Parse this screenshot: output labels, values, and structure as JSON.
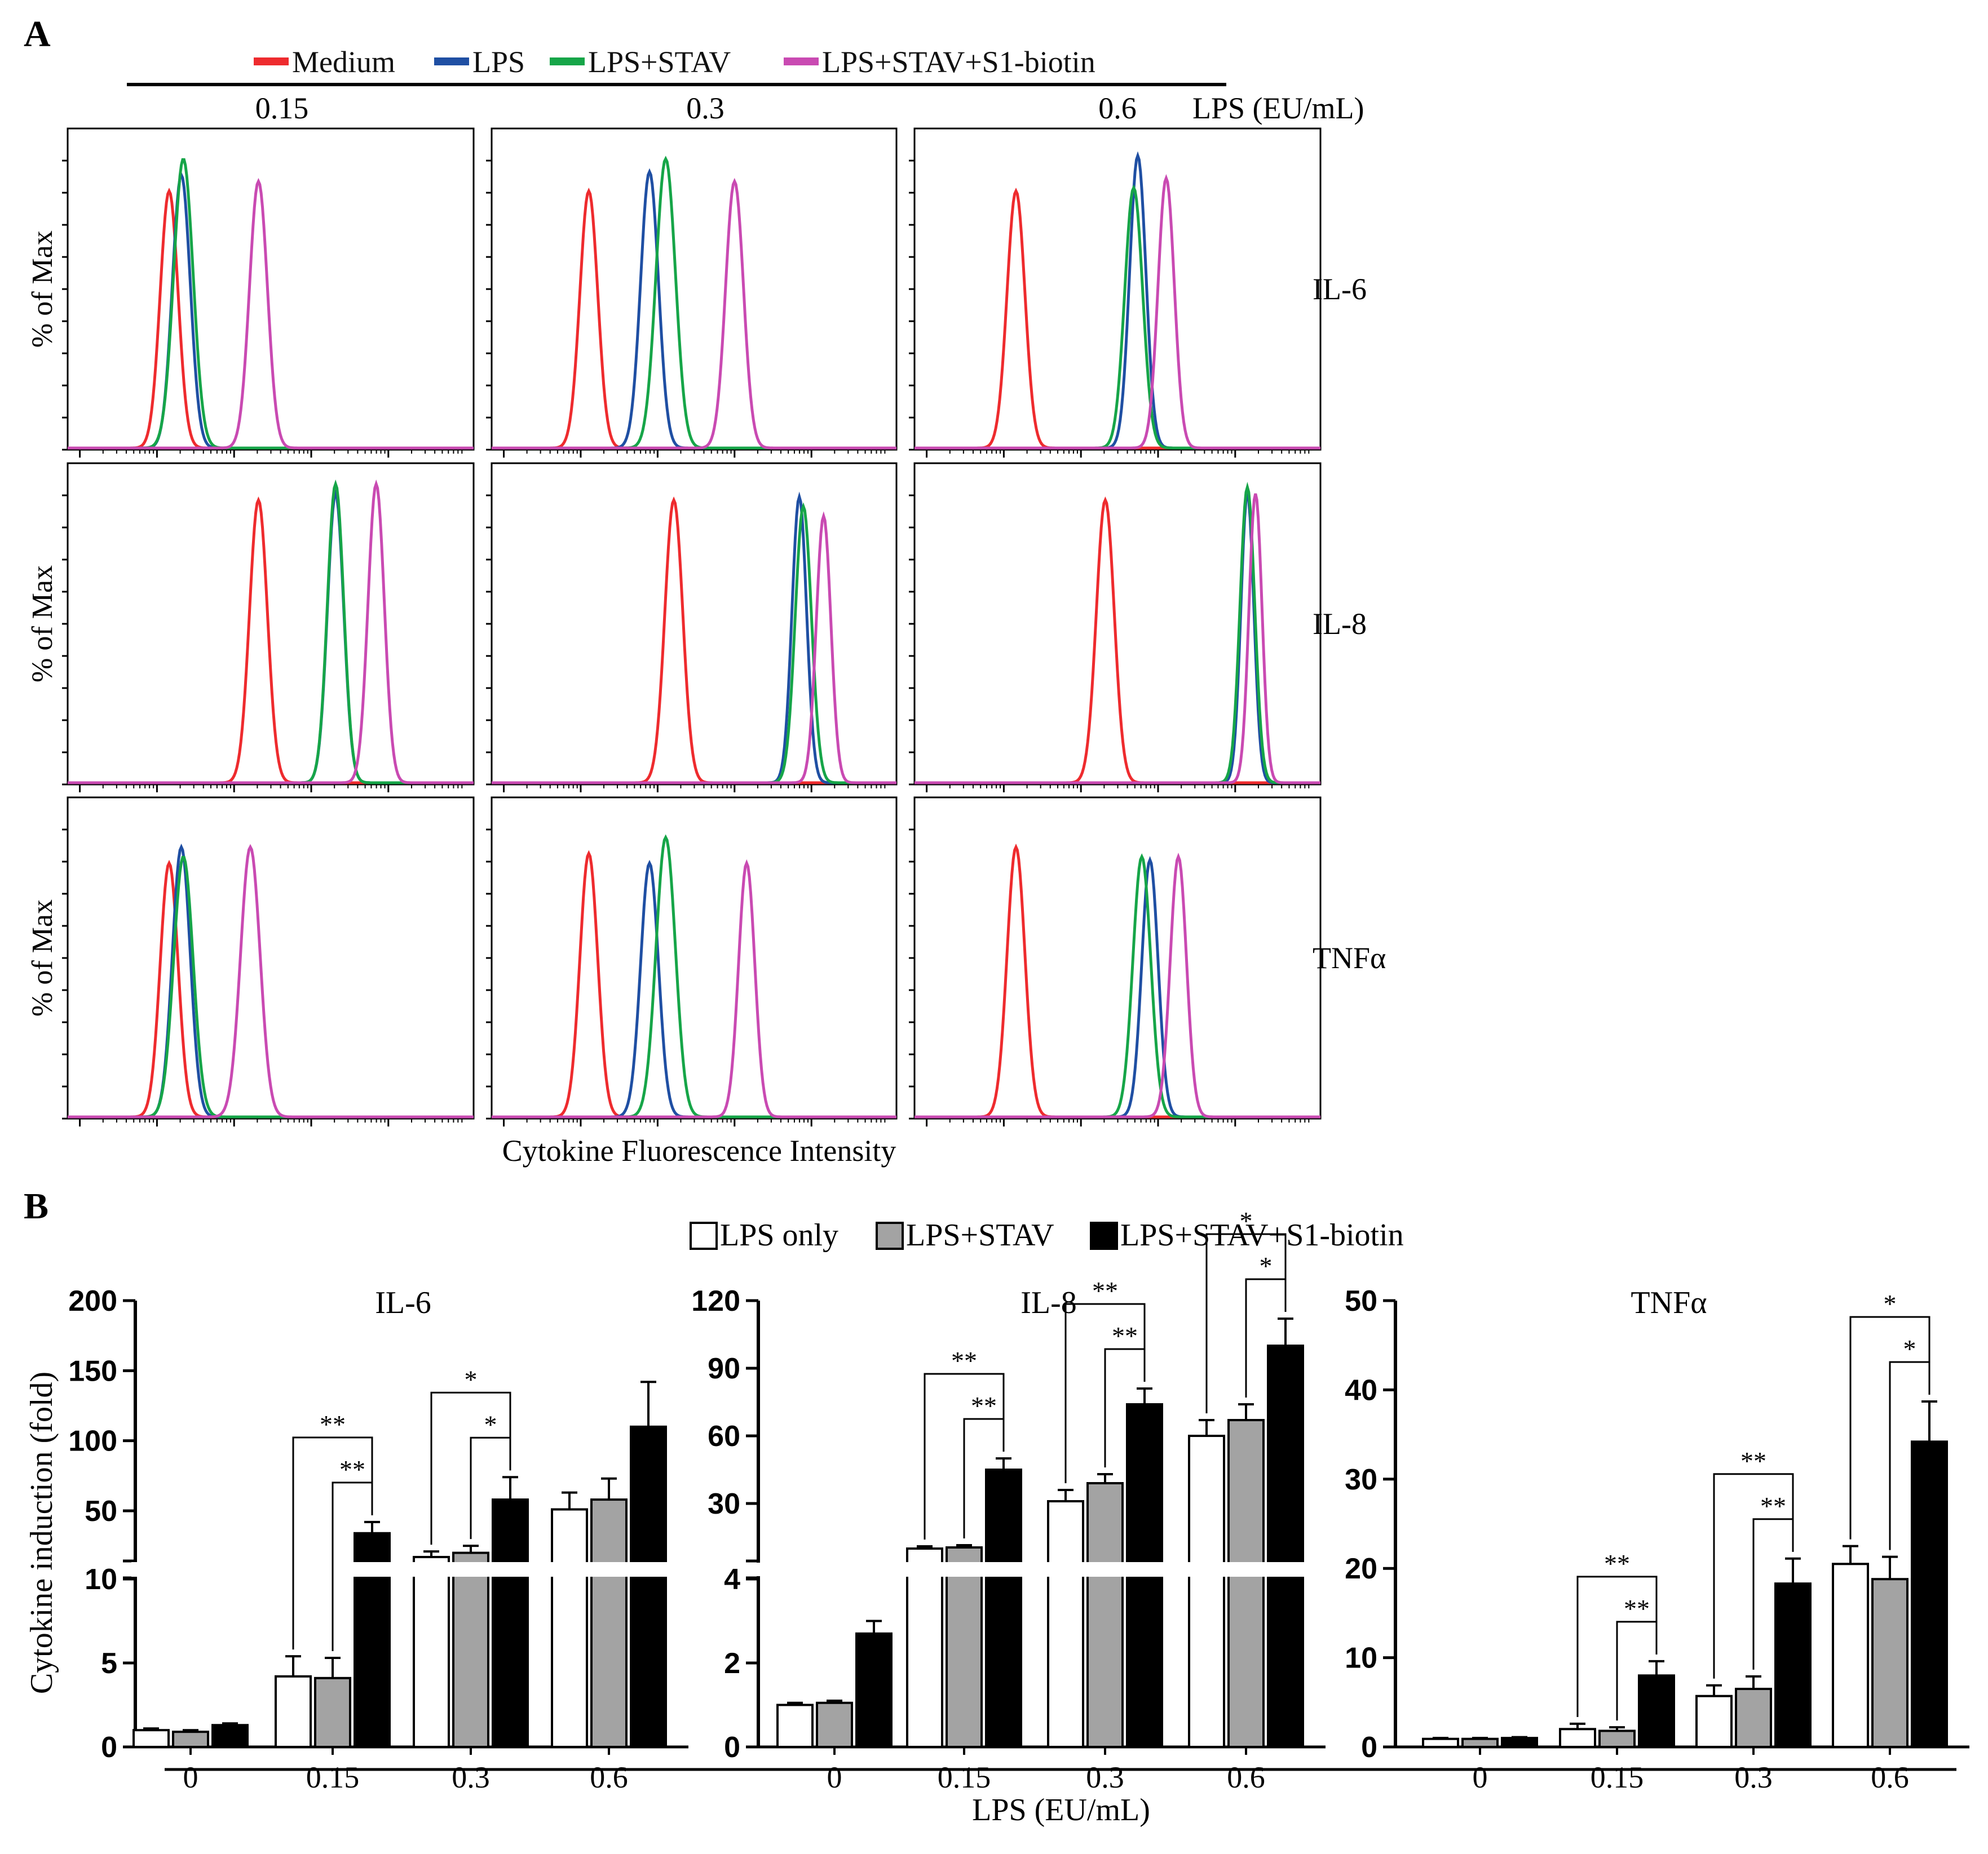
{
  "panel_a_label": "A",
  "panel_b_label": "B",
  "colors": {
    "medium": "#ee2b2e",
    "lps": "#1f4fa3",
    "lps_stav": "#16a548",
    "lps_stav_s1": "#c94ab2",
    "bar_lps_only": "#ffffff",
    "bar_lps_stav": "#a3a3a3",
    "bar_lps_stav_s1": "#000000"
  },
  "chart_data": [
    {
      "type": "histogram",
      "panel": "A",
      "title": "",
      "xlabel": "Cytokine Fluorescence Intensity",
      "ylabel": "% of Max",
      "x_scale": "log (relative position 0-1 within plot)",
      "legend": [
        "Medium",
        "LPS",
        "LPS+STAV",
        "LPS+STAV+S1-biotin"
      ],
      "column_group_label": "LPS (EU/mL)",
      "columns": [
        "0.15",
        "0.3",
        "0.6"
      ],
      "rows": [
        "IL-6",
        "IL-8",
        "TNFα"
      ],
      "peaks": [
        [
          [
            {
              "series": "Medium",
              "center": 0.25,
              "width": 0.022,
              "height": 0.8
            },
            {
              "series": "LPS",
              "center": 0.28,
              "width": 0.022,
              "height": 0.85
            },
            {
              "series": "LPS+STAV",
              "center": 0.285,
              "width": 0.024,
              "height": 0.9
            },
            {
              "series": "LPS+STAV+S1-biotin",
              "center": 0.47,
              "width": 0.022,
              "height": 0.83
            }
          ],
          [
            {
              "series": "Medium",
              "center": 0.24,
              "width": 0.022,
              "height": 0.8
            },
            {
              "series": "LPS",
              "center": 0.39,
              "width": 0.022,
              "height": 0.86
            },
            {
              "series": "LPS+STAV",
              "center": 0.43,
              "width": 0.024,
              "height": 0.9
            },
            {
              "series": "LPS+STAV+S1-biotin",
              "center": 0.6,
              "width": 0.022,
              "height": 0.83
            }
          ],
          [
            {
              "series": "Medium",
              "center": 0.25,
              "width": 0.022,
              "height": 0.8
            },
            {
              "series": "LPS",
              "center": 0.55,
              "width": 0.02,
              "height": 0.91
            },
            {
              "series": "LPS+STAV",
              "center": 0.54,
              "width": 0.022,
              "height": 0.81
            },
            {
              "series": "LPS+STAV+S1-biotin",
              "center": 0.62,
              "width": 0.02,
              "height": 0.84
            }
          ]
        ],
        [
          [
            {
              "series": "Medium",
              "center": 0.47,
              "width": 0.022,
              "height": 0.88
            },
            {
              "series": "LPS",
              "center": 0.66,
              "width": 0.02,
              "height": 0.9
            },
            {
              "series": "LPS+STAV",
              "center": 0.66,
              "width": 0.02,
              "height": 0.93
            },
            {
              "series": "LPS+STAV+S1-biotin",
              "center": 0.76,
              "width": 0.02,
              "height": 0.93
            }
          ],
          [
            {
              "series": "Medium",
              "center": 0.45,
              "width": 0.022,
              "height": 0.88
            },
            {
              "series": "LPS",
              "center": 0.76,
              "width": 0.018,
              "height": 0.89
            },
            {
              "series": "LPS+STAV",
              "center": 0.77,
              "width": 0.02,
              "height": 0.86
            },
            {
              "series": "LPS+STAV+S1-biotin",
              "center": 0.82,
              "width": 0.018,
              "height": 0.83
            }
          ],
          [
            {
              "series": "Medium",
              "center": 0.47,
              "width": 0.022,
              "height": 0.88
            },
            {
              "series": "LPS",
              "center": 0.82,
              "width": 0.016,
              "height": 0.9
            },
            {
              "series": "LPS+STAV",
              "center": 0.82,
              "width": 0.018,
              "height": 0.92
            },
            {
              "series": "LPS+STAV+S1-biotin",
              "center": 0.84,
              "width": 0.016,
              "height": 0.9
            }
          ]
        ],
        [
          [
            {
              "series": "Medium",
              "center": 0.25,
              "width": 0.022,
              "height": 0.79
            },
            {
              "series": "LPS",
              "center": 0.28,
              "width": 0.022,
              "height": 0.84
            },
            {
              "series": "LPS+STAV",
              "center": 0.285,
              "width": 0.024,
              "height": 0.81
            },
            {
              "series": "LPS+STAV+S1-biotin",
              "center": 0.45,
              "width": 0.024,
              "height": 0.84
            }
          ],
          [
            {
              "series": "Medium",
              "center": 0.24,
              "width": 0.022,
              "height": 0.82
            },
            {
              "series": "LPS",
              "center": 0.39,
              "width": 0.022,
              "height": 0.79
            },
            {
              "series": "LPS+STAV",
              "center": 0.43,
              "width": 0.024,
              "height": 0.87
            },
            {
              "series": "LPS+STAV+S1-biotin",
              "center": 0.63,
              "width": 0.02,
              "height": 0.79
            }
          ],
          [
            {
              "series": "Medium",
              "center": 0.25,
              "width": 0.022,
              "height": 0.84
            },
            {
              "series": "LPS",
              "center": 0.58,
              "width": 0.02,
              "height": 0.8
            },
            {
              "series": "LPS+STAV",
              "center": 0.56,
              "width": 0.022,
              "height": 0.81
            },
            {
              "series": "LPS+STAV+S1-biotin",
              "center": 0.65,
              "width": 0.02,
              "height": 0.81
            }
          ]
        ]
      ]
    },
    {
      "type": "bar",
      "panel": "B",
      "title": "IL-6",
      "xlabel": "LPS (EU/mL)",
      "ylabel": "Cytokine induction (fold)",
      "categories": [
        "0",
        "0.15",
        "0.3",
        "0.6"
      ],
      "legend": [
        "LPS only",
        "LPS+STAV",
        "LPS+STAV+S1-biotin"
      ],
      "y_axis_break": true,
      "y_lower": {
        "range": [
          0,
          10
        ],
        "ticks": [
          "0",
          "5",
          "10"
        ]
      },
      "y_upper": {
        "range": [
          15,
          200
        ],
        "ticks": [
          "50",
          "100",
          "150",
          "200"
        ]
      },
      "series": [
        {
          "name": "LPS only",
          "values": [
            1.0,
            4.2,
            17,
            51
          ],
          "errors": [
            0.1,
            1.2,
            4,
            12
          ]
        },
        {
          "name": "LPS+STAV",
          "values": [
            0.9,
            4.1,
            20,
            58
          ],
          "errors": [
            0.1,
            1.2,
            5,
            15
          ]
        },
        {
          "name": "LPS+STAV+S1-biotin",
          "values": [
            1.3,
            34,
            58,
            110
          ],
          "errors": [
            0.1,
            8,
            16,
            32
          ]
        }
      ],
      "significance": [
        {
          "group": 1,
          "from": 0,
          "to": 2,
          "label": "**"
        },
        {
          "group": 1,
          "from": 1,
          "to": 2,
          "label": "**"
        },
        {
          "group": 2,
          "from": 0,
          "to": 2,
          "label": "*"
        },
        {
          "group": 2,
          "from": 1,
          "to": 2,
          "label": "*"
        }
      ]
    },
    {
      "type": "bar",
      "panel": "B",
      "title": "IL-8",
      "xlabel": "LPS (EU/mL)",
      "ylabel": "",
      "categories": [
        "0",
        "0.15",
        "0.3",
        "0.6"
      ],
      "legend": [
        "LPS only",
        "LPS+STAV",
        "LPS+STAV+S1-biotin"
      ],
      "y_axis_break": true,
      "y_lower": {
        "range": [
          0,
          4
        ],
        "ticks": [
          "0",
          "2",
          "4"
        ]
      },
      "y_upper": {
        "range": [
          5,
          120
        ],
        "ticks": [
          "30",
          "60",
          "90",
          "120"
        ]
      },
      "series": [
        {
          "name": "LPS only",
          "values": [
            1.0,
            10,
            31,
            60
          ],
          "errors": [
            0.05,
            1,
            5,
            7
          ]
        },
        {
          "name": "LPS+STAV",
          "values": [
            1.05,
            10.5,
            39,
            67
          ],
          "errors": [
            0.05,
            1,
            4,
            7
          ]
        },
        {
          "name": "LPS+STAV+S1-biotin",
          "values": [
            2.7,
            45,
            74,
            100
          ],
          "errors": [
            0.3,
            5,
            7,
            12
          ]
        }
      ],
      "significance": [
        {
          "group": 1,
          "from": 0,
          "to": 2,
          "label": "**"
        },
        {
          "group": 1,
          "from": 1,
          "to": 2,
          "label": "**"
        },
        {
          "group": 2,
          "from": 0,
          "to": 2,
          "label": "**"
        },
        {
          "group": 2,
          "from": 1,
          "to": 2,
          "label": "**"
        },
        {
          "group": 3,
          "from": 0,
          "to": 2,
          "label": "*"
        },
        {
          "group": 3,
          "from": 1,
          "to": 2,
          "label": "*"
        }
      ]
    },
    {
      "type": "bar",
      "panel": "B",
      "title": "TNFα",
      "xlabel": "LPS (EU/mL)",
      "ylabel": "",
      "categories": [
        "0",
        "0.15",
        "0.3",
        "0.6"
      ],
      "legend": [
        "LPS only",
        "LPS+STAV",
        "LPS+STAV+S1-biotin"
      ],
      "y_axis_break": false,
      "ylim": [
        0,
        50
      ],
      "ticks": [
        "0",
        "10",
        "20",
        "30",
        "40",
        "50"
      ],
      "series": [
        {
          "name": "LPS only",
          "values": [
            0.9,
            2.0,
            5.7,
            20.5
          ],
          "errors": [
            0.1,
            0.6,
            1.2,
            2.0
          ]
        },
        {
          "name": "LPS+STAV",
          "values": [
            0.9,
            1.8,
            6.5,
            18.8
          ],
          "errors": [
            0.1,
            0.4,
            1.4,
            2.5
          ]
        },
        {
          "name": "LPS+STAV+S1-biotin",
          "values": [
            1.0,
            8.0,
            18.3,
            34.2
          ],
          "errors": [
            0.1,
            1.6,
            2.8,
            4.5
          ]
        }
      ],
      "significance": [
        {
          "group": 1,
          "from": 0,
          "to": 2,
          "label": "**"
        },
        {
          "group": 1,
          "from": 1,
          "to": 2,
          "label": "**"
        },
        {
          "group": 2,
          "from": 0,
          "to": 2,
          "label": "**"
        },
        {
          "group": 2,
          "from": 1,
          "to": 2,
          "label": "**"
        },
        {
          "group": 3,
          "from": 0,
          "to": 2,
          "label": "*"
        },
        {
          "group": 3,
          "from": 1,
          "to": 2,
          "label": "*"
        }
      ]
    }
  ]
}
